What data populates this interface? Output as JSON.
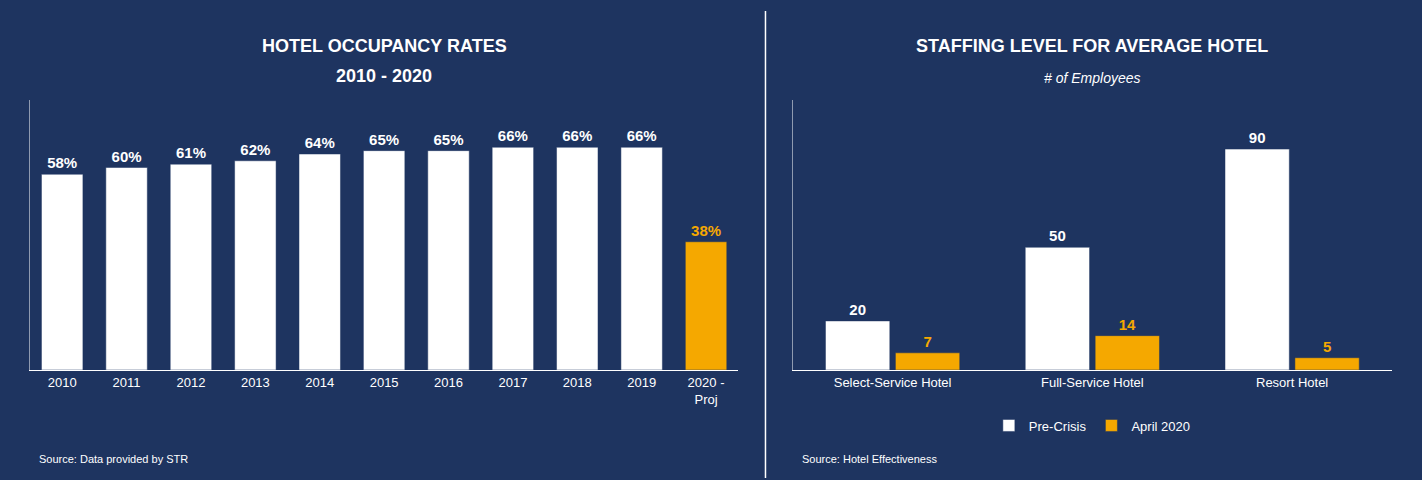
{
  "chart_data": [
    {
      "type": "bar",
      "title": "HOTEL OCCUPANCY RATES",
      "subtitle": "2010 - 2020",
      "categories": [
        "2010",
        "2011",
        "2012",
        "2013",
        "2014",
        "2015",
        "2016",
        "2017",
        "2018",
        "2019",
        "2020 -\nProj"
      ],
      "values": [
        58,
        60,
        61,
        62,
        64,
        65,
        65,
        66,
        66,
        66,
        38
      ],
      "value_labels": [
        "58%",
        "60%",
        "61%",
        "62%",
        "64%",
        "65%",
        "65%",
        "66%",
        "66%",
        "66%",
        "38%"
      ],
      "colors": [
        "white",
        "white",
        "white",
        "white",
        "white",
        "white",
        "white",
        "white",
        "white",
        "white",
        "#f5a800"
      ],
      "ylim": [
        0,
        80
      ],
      "grid": false,
      "tick_labels": "x",
      "data_labels": true,
      "annotations": [
        "Source: Data provided by STR"
      ]
    },
    {
      "type": "bar",
      "title": "STAFFING LEVEL FOR AVERAGE HOTEL",
      "subtitle": "# of Employees",
      "categories": [
        "Select-Service Hotel",
        "Full-Service Hotel",
        "Resort Hotel"
      ],
      "series": [
        {
          "name": "Pre-Crisis",
          "color": "white",
          "values": [
            20,
            50,
            90
          ]
        },
        {
          "name": "April 2020",
          "color": "#f5a800",
          "values": [
            7,
            14,
            5
          ]
        }
      ],
      "ylim": [
        0,
        110
      ],
      "grid": false,
      "tick_labels": "x",
      "data_labels": true,
      "legend": "bottom",
      "annotations": [
        "Source: Hotel Effectiveness"
      ]
    }
  ]
}
